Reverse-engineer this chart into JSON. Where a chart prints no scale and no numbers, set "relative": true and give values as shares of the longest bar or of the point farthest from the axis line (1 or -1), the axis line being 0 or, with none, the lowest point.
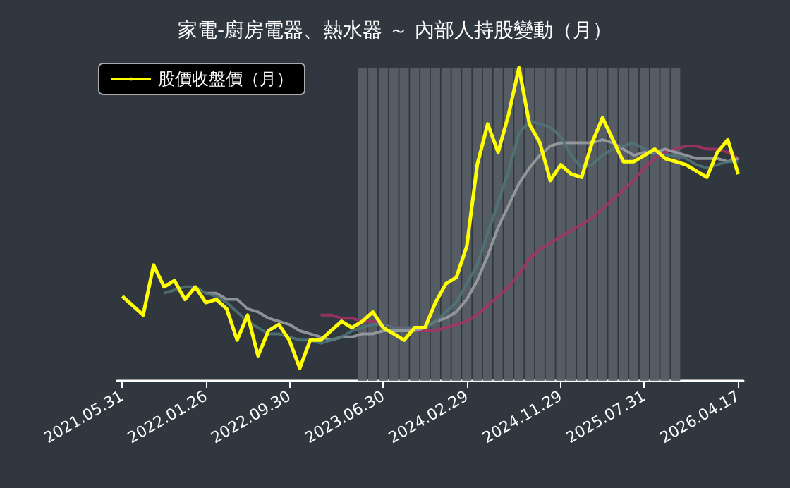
{
  "chart_data": {
    "type": "line",
    "title": "家電-廚房電器、熱水器 ～ 內部人持股變動（月）",
    "relative": true,
    "legend": "top left",
    "grid": false,
    "marker": "none",
    "line_style": "solid",
    "categories": [
      "2021.05.31",
      null,
      null,
      null,
      null,
      null,
      null,
      null,
      "2022.01.26",
      null,
      null,
      null,
      null,
      null,
      null,
      null,
      "2022.09.30",
      null,
      null,
      null,
      null,
      null,
      null,
      null,
      null,
      "2023.06.30",
      null,
      null,
      null,
      null,
      null,
      null,
      null,
      "2024.02.29",
      null,
      null,
      null,
      null,
      null,
      null,
      null,
      null,
      "2024.11.29",
      null,
      null,
      null,
      null,
      null,
      null,
      null,
      "2025.07.31",
      null,
      null,
      null,
      null,
      null,
      null,
      null,
      null,
      "2026.04.17"
    ],
    "series": [
      {
        "type": "bar",
        "color": "#5b6068",
        "values": [
          null,
          null,
          null,
          null,
          null,
          null,
          null,
          null,
          null,
          null,
          null,
          null,
          null,
          null,
          null,
          null,
          null,
          null,
          null,
          null,
          null,
          null,
          null,
          1,
          1,
          1,
          1,
          1,
          1,
          1,
          1,
          1,
          1,
          1,
          1,
          1,
          1,
          1,
          1,
          1,
          1,
          1,
          1,
          1,
          1,
          1,
          1,
          1,
          1,
          1,
          1,
          1,
          1,
          1,
          null,
          null,
          null,
          null,
          null,
          null
        ]
      },
      {
        "color": "#a8306a",
        "values": [
          null,
          null,
          null,
          null,
          null,
          null,
          null,
          null,
          null,
          null,
          null,
          null,
          null,
          null,
          null,
          null,
          null,
          null,
          null,
          0.21,
          0.21,
          0.2,
          0.2,
          0.19,
          0.19,
          0.18,
          0.17,
          0.17,
          0.16,
          0.16,
          0.16,
          0.17,
          0.18,
          0.19,
          0.21,
          0.24,
          0.27,
          0.3,
          0.34,
          0.39,
          0.42,
          0.44,
          0.46,
          0.48,
          0.5,
          0.52,
          0.55,
          0.58,
          0.61,
          0.64,
          0.68,
          0.71,
          0.73,
          0.74,
          0.75,
          0.75,
          0.74,
          0.74,
          0.73,
          0.71
        ]
      },
      {
        "color": "#9ea2a7",
        "values": [
          null,
          null,
          null,
          null,
          null,
          null,
          null,
          null,
          0.28,
          0.28,
          0.26,
          0.26,
          0.23,
          0.22,
          0.2,
          0.19,
          0.18,
          0.16,
          0.15,
          0.14,
          0.13,
          0.14,
          0.14,
          0.15,
          0.15,
          0.16,
          0.16,
          0.16,
          0.16,
          0.17,
          0.19,
          0.2,
          0.22,
          0.26,
          0.32,
          0.4,
          0.49,
          0.56,
          0.63,
          0.68,
          0.72,
          0.75,
          0.76,
          0.76,
          0.76,
          0.76,
          0.77,
          0.76,
          0.74,
          0.72,
          0.73,
          0.73,
          0.74,
          0.73,
          0.72,
          0.71,
          0.71,
          0.71,
          0.7,
          0.71
        ]
      },
      {
        "color": "#4f757a",
        "values": [
          null,
          null,
          null,
          null,
          0.28,
          0.29,
          0.3,
          0.3,
          0.28,
          0.27,
          0.25,
          0.22,
          0.19,
          0.17,
          0.15,
          0.15,
          0.14,
          0.13,
          0.13,
          0.12,
          0.13,
          0.14,
          0.16,
          0.17,
          0.18,
          0.18,
          0.17,
          0.17,
          0.17,
          0.17,
          0.19,
          0.22,
          0.25,
          0.31,
          0.37,
          0.47,
          0.57,
          0.67,
          0.79,
          0.83,
          0.82,
          0.81,
          0.78,
          0.72,
          0.68,
          0.69,
          0.72,
          0.74,
          0.75,
          0.76,
          0.74,
          0.73,
          0.72,
          0.72,
          0.71,
          0.69,
          0.68,
          0.69,
          0.7,
          0.7
        ]
      },
      {
        "name": "股價收盤價（月）",
        "color": "#ffff00",
        "values": [
          0.27,
          0.24,
          0.21,
          0.37,
          0.3,
          0.32,
          0.26,
          0.3,
          0.25,
          0.26,
          0.23,
          0.13,
          0.21,
          0.08,
          0.16,
          0.18,
          0.13,
          0.04,
          0.13,
          0.13,
          0.16,
          0.19,
          0.17,
          0.19,
          0.22,
          0.17,
          0.15,
          0.13,
          0.17,
          0.17,
          0.25,
          0.31,
          0.33,
          0.43,
          0.69,
          0.82,
          0.73,
          0.85,
          1,
          0.82,
          0.76,
          0.64,
          0.69,
          0.66,
          0.65,
          0.76,
          0.84,
          0.77,
          0.7,
          0.7,
          0.72,
          0.74,
          0.71,
          0.7,
          0.69,
          0.67,
          0.65,
          0.73,
          0.77,
          0.66
        ]
      }
    ]
  }
}
